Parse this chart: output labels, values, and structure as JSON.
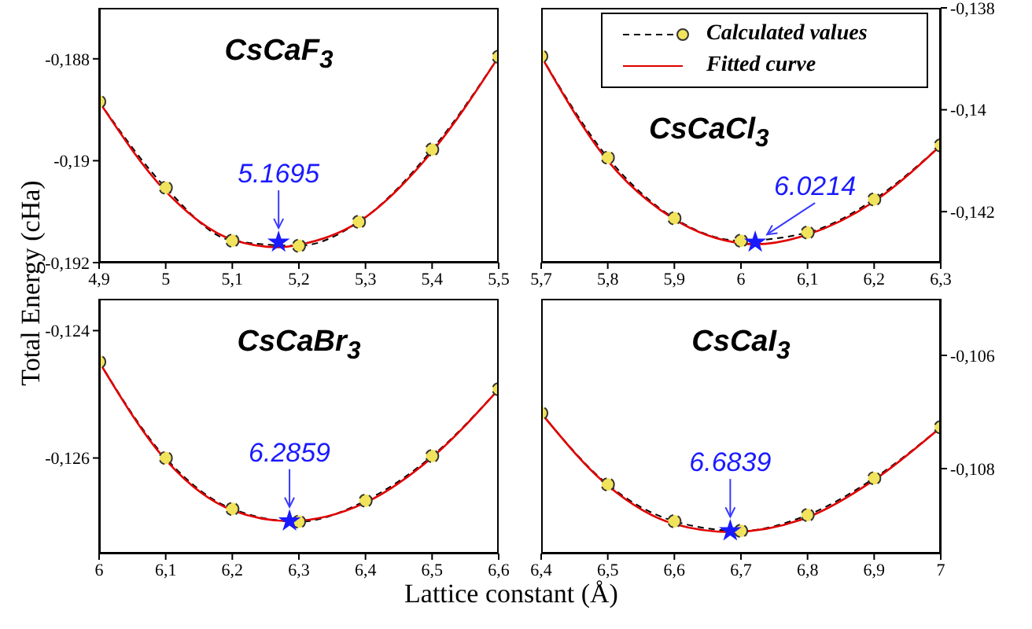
{
  "chart_data": [
    {
      "type": "line",
      "title": "CsCaF$_{3}$",
      "ylabel": "Total Energy (cHa)",
      "xlim": [
        4.9,
        5.5
      ],
      "xticks": [
        {
          "value": 4.9,
          "label": "4,9"
        },
        5,
        {
          "value": 5.1,
          "label": "5,1"
        },
        {
          "value": 5.2,
          "label": "5,2"
        },
        {
          "value": 5.3,
          "label": "5,3"
        },
        {
          "value": 5.4,
          "label": "5,4"
        },
        {
          "value": 5.5,
          "label": "5,5"
        }
      ],
      "ylim": [
        -0.192,
        -0.187
      ],
      "yticks": [
        {
          "value": -0.188,
          "label": "-0,188"
        },
        {
          "value": -0.19,
          "label": "-0,19"
        },
        {
          "value": -0.192,
          "label": "-0,192"
        }
      ],
      "series": [
        {
          "type": "line",
          "color": "#f2e35c",
          "marker": "circle",
          "line_style": "dashed",
          "x": [
            4.9,
            5.0,
            5.1,
            5.2,
            5.29,
            5.4,
            5.5
          ],
          "values": [
            -0.18884,
            -0.19053,
            -0.19157,
            -0.19167,
            -0.1912,
            -0.18978,
            -0.18796
          ]
        },
        {
          "type": "line",
          "color": "#e00000",
          "marker": "none",
          "line_style": "solid",
          "x": [
            4.9,
            5.0,
            5.1,
            5.1695,
            5.2,
            5.29,
            5.4,
            5.5
          ],
          "values": [
            -0.18884,
            -0.1906,
            -0.19155,
            -0.1917,
            -0.19165,
            -0.1912,
            -0.18982,
            -0.18796
          ]
        },
        {
          "type": "scatter",
          "color": "#1a1aff",
          "marker": "star",
          "x": [
            5.1695
          ],
          "values": [
            -0.1916
          ]
        }
      ],
      "annotations": [
        {
          "text": "5.1695",
          "x": 5.1695,
          "y": -0.1916
        }
      ]
    },
    {
      "type": "line",
      "title": "CsCaCl$_{3}$",
      "legend": "top right",
      "xlim": [
        5.7,
        6.3
      ],
      "xticks": [
        {
          "value": 5.7,
          "label": "5,7"
        },
        {
          "value": 5.8,
          "label": "5,8"
        },
        {
          "value": 5.9,
          "label": "5,9"
        },
        6,
        {
          "value": 6.1,
          "label": "6,1"
        },
        {
          "value": 6.2,
          "label": "6,2"
        },
        {
          "value": 6.3,
          "label": "6,3"
        }
      ],
      "ylim": [
        -0.143,
        -0.138
      ],
      "yticks": [
        {
          "value": -0.138,
          "label": "-0,138"
        },
        {
          "value": -0.14,
          "label": "-0,14"
        },
        {
          "value": -0.142,
          "label": "-0,142"
        }
      ],
      "series": [
        {
          "type": "line",
          "name": "Calculated values",
          "color": "#f2e35c",
          "marker": "circle",
          "line_style": "dashed",
          "x": [
            5.7,
            5.8,
            5.9,
            6.0,
            6.1,
            6.2,
            6.3
          ],
          "values": [
            -0.13895,
            -0.14094,
            -0.14213,
            -0.14257,
            -0.14241,
            -0.14176,
            -0.1407
          ]
        },
        {
          "type": "line",
          "name": "Fitted curve",
          "color": "#e00000",
          "marker": "none",
          "line_style": "solid",
          "x": [
            5.7,
            5.8,
            5.9,
            6.0,
            6.0214,
            6.1,
            6.2,
            6.3
          ],
          "values": [
            -0.13895,
            -0.141,
            -0.14215,
            -0.14262,
            -0.14264,
            -0.14245,
            -0.1418,
            -0.1407
          ]
        },
        {
          "type": "scatter",
          "color": "#1a1aff",
          "marker": "star",
          "x": [
            6.0214
          ],
          "values": [
            -0.1426
          ]
        }
      ],
      "annotations": [
        {
          "text": "6.0214",
          "x": 6.0214,
          "y": -0.1426
        }
      ]
    },
    {
      "type": "line",
      "title": "CsCaBr$_{3}$",
      "xlabel": "Lattice constant (Å)",
      "xlim": [
        6.0,
        6.6
      ],
      "xticks": [
        6,
        {
          "value": 6.1,
          "label": "6,1"
        },
        {
          "value": 6.2,
          "label": "6,2"
        },
        {
          "value": 6.3,
          "label": "6,3"
        },
        {
          "value": 6.4,
          "label": "6,4"
        },
        {
          "value": 6.5,
          "label": "6,5"
        },
        {
          "value": 6.6,
          "label": "6,6"
        }
      ],
      "ylim": [
        -0.1275,
        -0.1235
      ],
      "yticks": [
        {
          "value": -0.124,
          "label": "-0,124"
        },
        {
          "value": -0.126,
          "label": "-0,126"
        }
      ],
      "series": [
        {
          "type": "line",
          "color": "#f2e35c",
          "marker": "circle",
          "line_style": "dashed",
          "x": [
            6.0,
            6.1,
            6.2,
            6.3,
            6.4,
            6.5,
            6.6
          ],
          "values": [
            -0.12449,
            -0.126,
            -0.1268,
            -0.127,
            -0.12667,
            -0.12597,
            -0.12492
          ]
        },
        {
          "type": "line",
          "color": "#e00000",
          "marker": "none",
          "line_style": "solid",
          "x": [
            6.0,
            6.1,
            6.2,
            6.2859,
            6.4,
            6.5,
            6.6
          ],
          "values": [
            -0.12449,
            -0.12603,
            -0.12682,
            -0.12699,
            -0.1267,
            -0.12599,
            -0.12492
          ]
        },
        {
          "type": "scatter",
          "color": "#1a1aff",
          "marker": "star",
          "x": [
            6.2859
          ],
          "values": [
            -0.12699
          ]
        }
      ],
      "annotations": [
        {
          "text": "6.2859",
          "x": 6.2859,
          "y": -0.12699
        }
      ]
    },
    {
      "type": "line",
      "title": "CsCaI$_{3}$",
      "xlim": [
        6.4,
        7.0
      ],
      "xticks": [
        {
          "value": 6.4,
          "label": "6,4"
        },
        {
          "value": 6.5,
          "label": "6,5"
        },
        {
          "value": 6.6,
          "label": "6,6"
        },
        {
          "value": 6.7,
          "label": "6,7"
        },
        {
          "value": 6.8,
          "label": "6,8"
        },
        {
          "value": 6.9,
          "label": "6,9"
        },
        7
      ],
      "ylim": [
        -0.1095,
        -0.105
      ],
      "yticks": [
        {
          "value": -0.106,
          "label": "-0,106"
        },
        {
          "value": -0.108,
          "label": "-0,108"
        }
      ],
      "series": [
        {
          "type": "line",
          "color": "#f2e35c",
          "marker": "circle",
          "line_style": "dashed",
          "x": [
            6.4,
            6.5,
            6.6,
            6.7,
            6.8,
            6.9,
            7.0
          ],
          "values": [
            -0.10702,
            -0.10828,
            -0.10893,
            -0.1091,
            -0.10882,
            -0.10817,
            -0.10727
          ]
        },
        {
          "type": "line",
          "color": "#e00000",
          "marker": "none",
          "line_style": "solid",
          "x": [
            6.4,
            6.5,
            6.6,
            6.6839,
            6.8,
            6.9,
            7.0
          ],
          "values": [
            -0.10702,
            -0.1083,
            -0.10898,
            -0.10912,
            -0.10886,
            -0.1082,
            -0.10727
          ]
        },
        {
          "type": "scatter",
          "color": "#1a1aff",
          "marker": "star",
          "x": [
            6.6839
          ],
          "values": [
            -0.1091
          ]
        }
      ],
      "annotations": [
        {
          "text": "6.6839",
          "x": 6.6839,
          "y": -0.1091
        }
      ]
    }
  ]
}
